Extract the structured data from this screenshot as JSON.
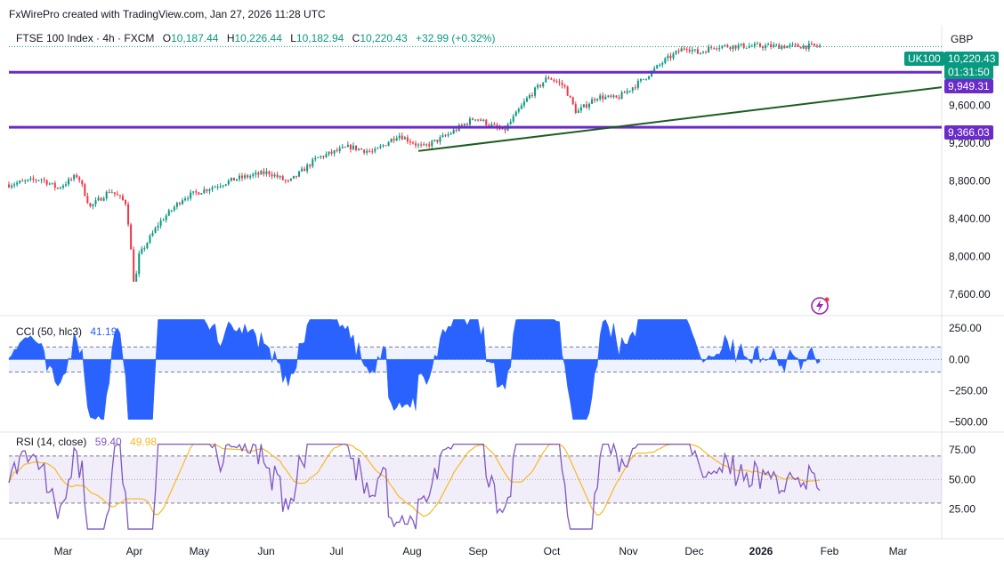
{
  "attribution": "FxWirePro created with TradingView.com, Jan 27, 2026 11:28 UTC",
  "currency": "GBP",
  "symbol_tag": "UK100",
  "legend": {
    "symbol": "FTSE 100 Index · 4h · FXCM",
    "o_label": "O",
    "o": "10,187.44",
    "h_label": "H",
    "h": "10,226.44",
    "l_label": "L",
    "l": "10,182.94",
    "c_label": "C",
    "c": "10,220.43",
    "change": "+32.99 (+0.32%)"
  },
  "cci_legend": {
    "label": "CCI (50, hlc3)",
    "value": "41.19"
  },
  "rsi_legend": {
    "label": "RSI (14, close)",
    "value": "59.40",
    "ma_value": "49.98"
  },
  "price_tags": {
    "last": "10,220.43",
    "countdown": "01:31:50",
    "upper_level": "9,949.31",
    "lower_level": "9,366.03"
  },
  "colors": {
    "up": "#089981",
    "down": "#f23645",
    "level": "#6a2cc8",
    "trend": "#1b5e20",
    "cci": "#2962ff",
    "rsi": "#7e57c2",
    "rsi_ma": "#f7b924"
  },
  "chart_data": [
    {
      "type": "candlestick",
      "title": "FTSE 100 Index · 4h · FXCM",
      "x_ticks": [
        "Mar",
        "Apr",
        "May",
        "Jun",
        "Jul",
        "Aug",
        "Sep",
        "Oct",
        "Nov",
        "Dec",
        "2026",
        "Feb",
        "Mar"
      ],
      "y_ticks": [
        "7,600.00",
        "8,000.00",
        "8,400.00",
        "8,800.00",
        "9,200.00",
        "9,600.00"
      ],
      "ylim": [
        7400,
        10450
      ],
      "price_path": [
        {
          "t": 0,
          "p": 8760
        },
        {
          "t": 0.04,
          "p": 8820
        },
        {
          "t": 0.06,
          "p": 8720
        },
        {
          "t": 0.085,
          "p": 8860
        },
        {
          "t": 0.1,
          "p": 8520
        },
        {
          "t": 0.125,
          "p": 8700
        },
        {
          "t": 0.145,
          "p": 8560
        },
        {
          "t": 0.155,
          "p": 7650
        },
        {
          "t": 0.16,
          "p": 8000
        },
        {
          "t": 0.185,
          "p": 8350
        },
        {
          "t": 0.215,
          "p": 8620
        },
        {
          "t": 0.24,
          "p": 8700
        },
        {
          "t": 0.28,
          "p": 8820
        },
        {
          "t": 0.32,
          "p": 8890
        },
        {
          "t": 0.345,
          "p": 8780
        },
        {
          "t": 0.38,
          "p": 9040
        },
        {
          "t": 0.42,
          "p": 9160
        },
        {
          "t": 0.45,
          "p": 9100
        },
        {
          "t": 0.48,
          "p": 9290
        },
        {
          "t": 0.51,
          "p": 9150
        },
        {
          "t": 0.54,
          "p": 9280
        },
        {
          "t": 0.575,
          "p": 9470
        },
        {
          "t": 0.61,
          "p": 9320
        },
        {
          "t": 0.64,
          "p": 9680
        },
        {
          "t": 0.665,
          "p": 9900
        },
        {
          "t": 0.685,
          "p": 9800
        },
        {
          "t": 0.7,
          "p": 9520
        },
        {
          "t": 0.725,
          "p": 9690
        },
        {
          "t": 0.75,
          "p": 9670
        },
        {
          "t": 0.78,
          "p": 9860
        },
        {
          "t": 0.81,
          "p": 10080
        },
        {
          "t": 0.835,
          "p": 10220
        },
        {
          "t": 0.85,
          "p": 10150
        },
        {
          "t": 0.87,
          "p": 10225
        }
      ],
      "horizontal_levels": [
        9949.31,
        9366.03
      ],
      "trendline": [
        {
          "t": 0.505,
          "p": 9115
        },
        {
          "t": 1.0,
          "p": 9790
        }
      ]
    },
    {
      "type": "area",
      "title": "CCI (50, hlc3)",
      "y_ticks": [
        "250.00",
        "0.00",
        "−250.00",
        "−500.00"
      ],
      "ylim": [
        -560,
        330
      ],
      "bands": [
        100,
        -100
      ]
    },
    {
      "type": "line",
      "title": "RSI (14, close)",
      "series": [
        {
          "name": "RSI"
        },
        {
          "name": "RSI-based MA"
        }
      ],
      "y_ticks": [
        "75.00",
        "50.00",
        "25.00"
      ],
      "ylim": [
        2,
        88
      ],
      "bands": [
        70,
        30
      ],
      "midline": 50
    }
  ]
}
